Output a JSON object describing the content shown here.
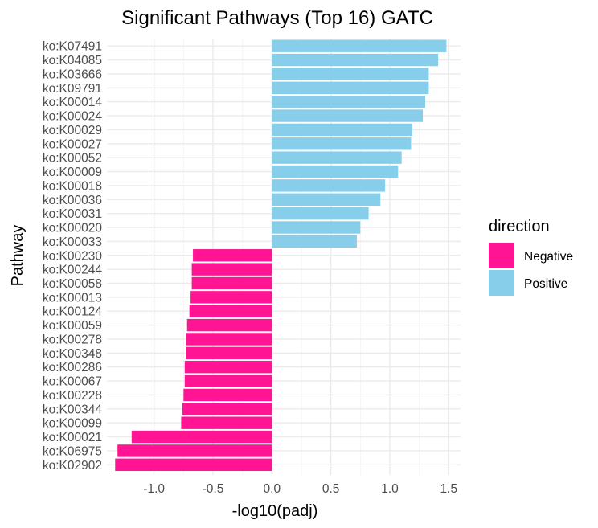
{
  "chart_data": {
    "type": "bar",
    "orientation": "horizontal",
    "title": "Significant Pathways (Top 16) GATC",
    "xlabel": "-log10(padj)",
    "ylabel": "Pathway",
    "xlim": [
      -1.4,
      1.6
    ],
    "xticks": [
      -1.0,
      -0.5,
      0.0,
      0.5,
      1.0,
      1.5
    ],
    "xtick_labels": [
      "-1.0",
      "-0.5",
      "0.0",
      "0.5",
      "1.0",
      "1.5"
    ],
    "grid": true,
    "legend": {
      "title": "direction",
      "placement": "right",
      "entries": [
        {
          "label": "Negative",
          "color": "#FF1493"
        },
        {
          "label": "Positive",
          "color": "#87CEEB"
        }
      ]
    },
    "categories": [
      "ko:K07491",
      "ko:K04085",
      "ko:K03666",
      "ko:K09791",
      "ko:K00014",
      "ko:K00024",
      "ko:K00029",
      "ko:K00027",
      "ko:K00052",
      "ko:K00009",
      "ko:K00018",
      "ko:K00036",
      "ko:K00031",
      "ko:K00020",
      "ko:K00033",
      "ko:K00230",
      "ko:K00244",
      "ko:K00058",
      "ko:K00013",
      "ko:K00124",
      "ko:K00059",
      "ko:K00278",
      "ko:K00348",
      "ko:K00286",
      "ko:K00067",
      "ko:K00228",
      "ko:K00344",
      "ko:K00099",
      "ko:K00021",
      "ko:K06975",
      "ko:K02902"
    ],
    "values": [
      1.48,
      1.41,
      1.33,
      1.33,
      1.3,
      1.28,
      1.19,
      1.18,
      1.1,
      1.07,
      0.96,
      0.92,
      0.82,
      0.75,
      0.72,
      -0.67,
      -0.68,
      -0.68,
      -0.69,
      -0.7,
      -0.72,
      -0.73,
      -0.73,
      -0.74,
      -0.74,
      -0.75,
      -0.76,
      -0.77,
      -1.19,
      -1.31,
      -1.33
    ],
    "direction": [
      "Positive",
      "Positive",
      "Positive",
      "Positive",
      "Positive",
      "Positive",
      "Positive",
      "Positive",
      "Positive",
      "Positive",
      "Positive",
      "Positive",
      "Positive",
      "Positive",
      "Positive",
      "Negative",
      "Negative",
      "Negative",
      "Negative",
      "Negative",
      "Negative",
      "Negative",
      "Negative",
      "Negative",
      "Negative",
      "Negative",
      "Negative",
      "Negative",
      "Negative",
      "Negative",
      "Negative"
    ]
  }
}
